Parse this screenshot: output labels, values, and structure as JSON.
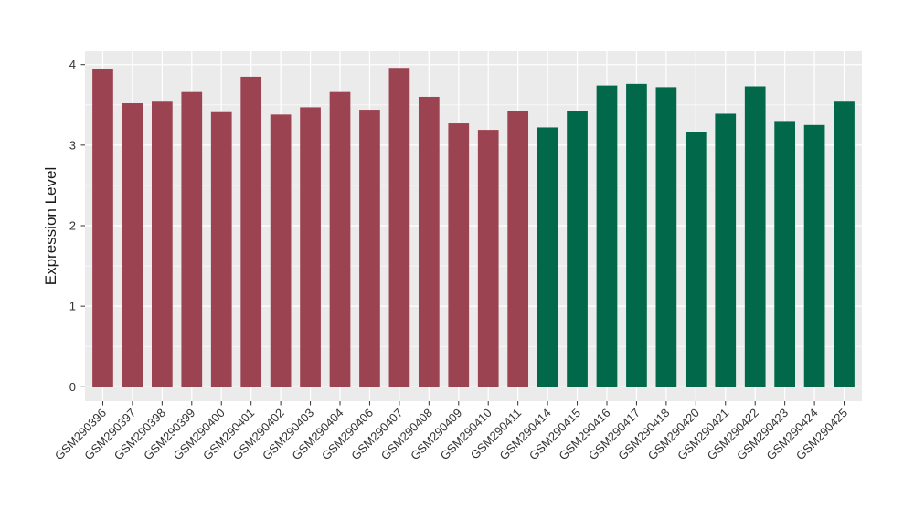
{
  "chart_data": {
    "type": "bar",
    "title": "",
    "xlabel": "",
    "ylabel": "Expression Level",
    "categories": [
      "GSM290396",
      "GSM290397",
      "GSM290398",
      "GSM290399",
      "GSM290400",
      "GSM290401",
      "GSM290402",
      "GSM290403",
      "GSM290404",
      "GSM290406",
      "GSM290407",
      "GSM290408",
      "GSM290409",
      "GSM290410",
      "GSM290411",
      "GSM290414",
      "GSM290415",
      "GSM290416",
      "GSM290417",
      "GSM290418",
      "GSM290420",
      "GSM290421",
      "GSM290422",
      "GSM290423",
      "GSM290424",
      "GSM290425"
    ],
    "values": [
      3.95,
      3.52,
      3.54,
      3.66,
      3.41,
      3.85,
      3.38,
      3.47,
      3.66,
      3.44,
      3.96,
      3.6,
      3.27,
      3.19,
      3.42,
      3.22,
      3.42,
      3.74,
      3.76,
      3.72,
      3.16,
      3.39,
      3.73,
      3.3,
      3.25,
      3.54
    ],
    "bar_groups": [
      0,
      0,
      0,
      0,
      0,
      0,
      0,
      0,
      0,
      0,
      0,
      0,
      0,
      0,
      0,
      1,
      1,
      1,
      1,
      1,
      1,
      1,
      1,
      1,
      1,
      1
    ],
    "group_colors": [
      "#9C4352",
      "#02684A"
    ],
    "yticks": [
      0,
      1,
      2,
      3,
      4
    ],
    "minor_ticks": [
      0.5,
      1.5,
      2.5,
      3.5
    ],
    "ylim": [
      0,
      4.17
    ],
    "grid": true,
    "legend_position": "none",
    "panel_bg": "#EBEBEB",
    "grid_color": "#FFFFFF",
    "axis_text_color": "#333333",
    "axis_title_color": "#1A1A1A",
    "tick_mark_color": "#333333"
  }
}
